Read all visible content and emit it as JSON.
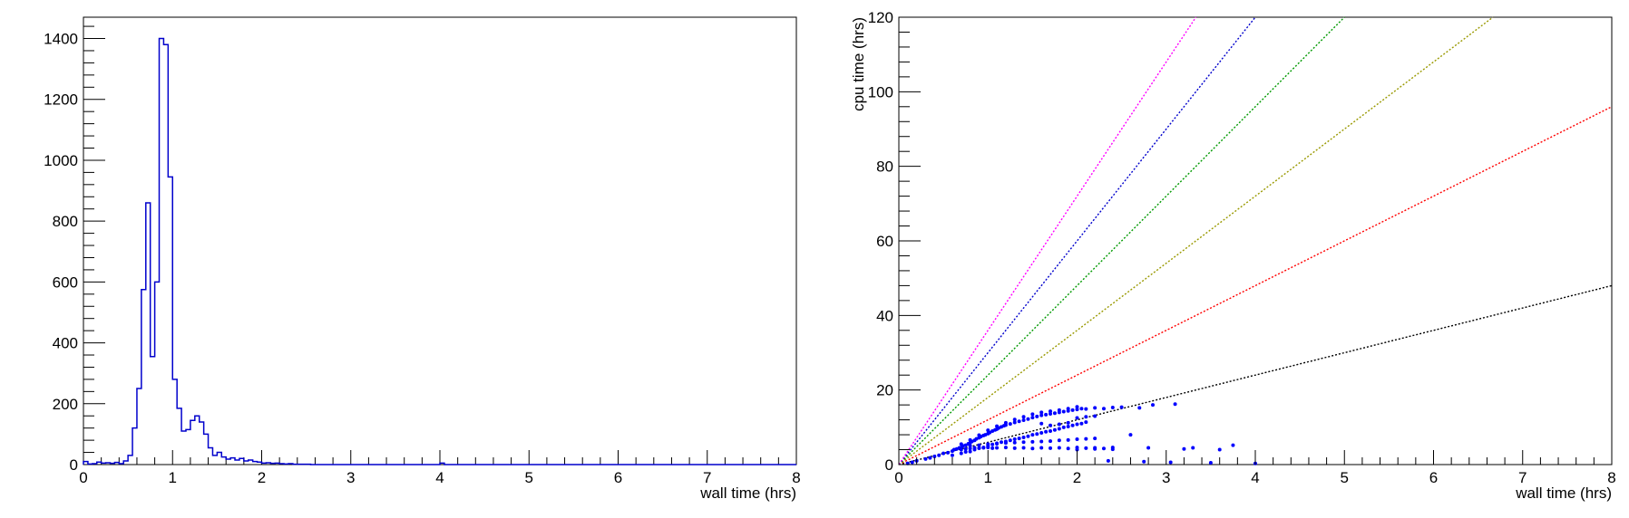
{
  "chart_data": [
    {
      "id": "left",
      "type": "histogram",
      "title": "",
      "xlabel": "wall time (hrs)",
      "ylabel": "",
      "xlim": [
        0,
        8
      ],
      "ylim": [
        0,
        1470
      ],
      "x_ticks": [
        0,
        1,
        2,
        3,
        4,
        5,
        6,
        7,
        8
      ],
      "y_ticks": [
        0,
        200,
        400,
        600,
        800,
        1000,
        1200,
        1400
      ],
      "grid": false,
      "color": "#0000cc",
      "bin_width": 0.05,
      "bins": [
        {
          "x": 0.0,
          "y": 10
        },
        {
          "x": 0.05,
          "y": 2
        },
        {
          "x": 0.1,
          "y": 3
        },
        {
          "x": 0.15,
          "y": 8
        },
        {
          "x": 0.2,
          "y": 5
        },
        {
          "x": 0.25,
          "y": 6
        },
        {
          "x": 0.3,
          "y": 4
        },
        {
          "x": 0.35,
          "y": 7
        },
        {
          "x": 0.4,
          "y": 3
        },
        {
          "x": 0.45,
          "y": 12
        },
        {
          "x": 0.5,
          "y": 30
        },
        {
          "x": 0.55,
          "y": 120
        },
        {
          "x": 0.6,
          "y": 250
        },
        {
          "x": 0.65,
          "y": 575
        },
        {
          "x": 0.7,
          "y": 860
        },
        {
          "x": 0.75,
          "y": 355
        },
        {
          "x": 0.8,
          "y": 600
        },
        {
          "x": 0.85,
          "y": 1400
        },
        {
          "x": 0.9,
          "y": 1380
        },
        {
          "x": 0.95,
          "y": 945
        },
        {
          "x": 1.0,
          "y": 280
        },
        {
          "x": 1.05,
          "y": 185
        },
        {
          "x": 1.1,
          "y": 110
        },
        {
          "x": 1.15,
          "y": 115
        },
        {
          "x": 1.2,
          "y": 145
        },
        {
          "x": 1.25,
          "y": 160
        },
        {
          "x": 1.3,
          "y": 140
        },
        {
          "x": 1.35,
          "y": 100
        },
        {
          "x": 1.4,
          "y": 55
        },
        {
          "x": 1.45,
          "y": 30
        },
        {
          "x": 1.5,
          "y": 40
        },
        {
          "x": 1.55,
          "y": 25
        },
        {
          "x": 1.6,
          "y": 18
        },
        {
          "x": 1.65,
          "y": 22
        },
        {
          "x": 1.7,
          "y": 15
        },
        {
          "x": 1.75,
          "y": 20
        },
        {
          "x": 1.8,
          "y": 12
        },
        {
          "x": 1.85,
          "y": 15
        },
        {
          "x": 1.9,
          "y": 10
        },
        {
          "x": 1.95,
          "y": 8
        },
        {
          "x": 2.0,
          "y": 5
        },
        {
          "x": 2.05,
          "y": 6
        },
        {
          "x": 2.1,
          "y": 4
        },
        {
          "x": 2.15,
          "y": 5
        },
        {
          "x": 2.2,
          "y": 3
        },
        {
          "x": 2.25,
          "y": 2
        },
        {
          "x": 2.3,
          "y": 3
        },
        {
          "x": 2.35,
          "y": 1
        },
        {
          "x": 2.4,
          "y": 1
        },
        {
          "x": 2.45,
          "y": 1
        },
        {
          "x": 2.5,
          "y": 1
        },
        {
          "x": 4.0,
          "y": 5
        }
      ]
    },
    {
      "id": "right",
      "type": "scatter",
      "title": "",
      "xlabel": "wall time (hrs)",
      "ylabel": "cpu time (hrs)",
      "xlim": [
        0,
        8
      ],
      "ylim": [
        0,
        120
      ],
      "x_ticks": [
        0,
        1,
        2,
        3,
        4,
        5,
        6,
        7,
        8
      ],
      "y_ticks": [
        0,
        20,
        40,
        60,
        80,
        100,
        120
      ],
      "grid": false,
      "reference_lines": [
        {
          "slope": 6,
          "color": "#000000"
        },
        {
          "slope": 12,
          "color": "#ff0000"
        },
        {
          "slope": 18,
          "color": "#999900"
        },
        {
          "slope": 24,
          "color": "#009900"
        },
        {
          "slope": 30,
          "color": "#0000cc"
        },
        {
          "slope": 36,
          "color": "#ff00ff"
        }
      ],
      "series": [
        {
          "color": "#0000ff",
          "points": [
            [
              0.1,
              0.3
            ],
            [
              0.15,
              0.6
            ],
            [
              0.2,
              1.0
            ],
            [
              0.3,
              1.5
            ],
            [
              0.35,
              1.8
            ],
            [
              0.4,
              2.2
            ],
            [
              0.45,
              2.5
            ],
            [
              0.5,
              3.0
            ],
            [
              0.55,
              3.2
            ],
            [
              0.6,
              3.6
            ],
            [
              0.62,
              4.0
            ],
            [
              0.65,
              4.2
            ],
            [
              0.68,
              4.5
            ],
            [
              0.7,
              4.6
            ],
            [
              0.72,
              5.0
            ],
            [
              0.75,
              5.2
            ],
            [
              0.78,
              5.6
            ],
            [
              0.8,
              5.8
            ],
            [
              0.82,
              6.2
            ],
            [
              0.85,
              6.5
            ],
            [
              0.87,
              6.9
            ],
            [
              0.9,
              7.2
            ],
            [
              0.92,
              7.5
            ],
            [
              0.95,
              7.8
            ],
            [
              0.97,
              8.0
            ],
            [
              1.0,
              8.3
            ],
            [
              1.02,
              8.6
            ],
            [
              1.05,
              9.0
            ],
            [
              1.08,
              9.3
            ],
            [
              1.1,
              9.5
            ],
            [
              1.12,
              9.8
            ],
            [
              1.15,
              10.1
            ],
            [
              1.18,
              10.4
            ],
            [
              1.2,
              10.6
            ],
            [
              1.25,
              10.9
            ],
            [
              1.3,
              11.3
            ],
            [
              1.35,
              11.6
            ],
            [
              1.4,
              11.9
            ],
            [
              1.45,
              12.2
            ],
            [
              1.5,
              12.6
            ],
            [
              1.55,
              12.9
            ],
            [
              1.6,
              13.2
            ],
            [
              1.65,
              13.4
            ],
            [
              1.7,
              13.6
            ],
            [
              1.75,
              13.8
            ],
            [
              1.8,
              14.0
            ],
            [
              1.85,
              14.2
            ],
            [
              1.9,
              14.4
            ],
            [
              1.95,
              14.6
            ],
            [
              2.0,
              14.8
            ],
            [
              2.05,
              15.0
            ],
            [
              2.1,
              14.9
            ],
            [
              2.2,
              15.2
            ],
            [
              2.3,
              15.0
            ],
            [
              2.4,
              15.3
            ],
            [
              2.5,
              15.4
            ],
            [
              2.7,
              15.2
            ],
            [
              2.85,
              16.0
            ],
            [
              3.1,
              16.2
            ],
            [
              0.6,
              2.5
            ],
            [
              0.7,
              3.0
            ],
            [
              0.75,
              3.4
            ],
            [
              0.8,
              3.5
            ],
            [
              0.85,
              4.0
            ],
            [
              0.9,
              4.4
            ],
            [
              0.95,
              4.6
            ],
            [
              1.0,
              5.0
            ],
            [
              1.05,
              5.4
            ],
            [
              1.1,
              5.7
            ],
            [
              1.15,
              6.0
            ],
            [
              1.2,
              6.2
            ],
            [
              1.25,
              6.5
            ],
            [
              1.3,
              6.8
            ],
            [
              1.35,
              7.0
            ],
            [
              1.4,
              7.3
            ],
            [
              1.45,
              7.6
            ],
            [
              1.5,
              8.0
            ],
            [
              1.55,
              8.2
            ],
            [
              1.6,
              8.5
            ],
            [
              1.65,
              8.8
            ],
            [
              1.7,
              9.0
            ],
            [
              1.75,
              9.3
            ],
            [
              1.8,
              9.6
            ],
            [
              1.85,
              10.0
            ],
            [
              1.9,
              10.2
            ],
            [
              1.95,
              10.5
            ],
            [
              2.0,
              10.8
            ],
            [
              2.05,
              11.0
            ],
            [
              2.1,
              11.4
            ],
            [
              0.7,
              5.5
            ],
            [
              0.8,
              6.6
            ],
            [
              0.9,
              7.9
            ],
            [
              1.0,
              9.2
            ],
            [
              1.1,
              10.3
            ],
            [
              1.2,
              11.2
            ],
            [
              1.3,
              12.1
            ],
            [
              1.4,
              12.8
            ],
            [
              1.5,
              13.5
            ],
            [
              1.6,
              14.0
            ],
            [
              1.7,
              14.3
            ],
            [
              1.8,
              14.6
            ],
            [
              1.9,
              15.0
            ],
            [
              2.0,
              15.5
            ],
            [
              0.7,
              4.0
            ],
            [
              0.75,
              4.2
            ],
            [
              0.8,
              4.3
            ],
            [
              0.85,
              4.5
            ],
            [
              0.9,
              4.4
            ],
            [
              0.95,
              4.5
            ],
            [
              1.0,
              4.6
            ],
            [
              1.05,
              4.4
            ],
            [
              1.1,
              4.5
            ],
            [
              1.2,
              4.6
            ],
            [
              1.3,
              4.4
            ],
            [
              1.4,
              4.5
            ],
            [
              1.5,
              4.3
            ],
            [
              1.6,
              4.5
            ],
            [
              1.7,
              4.4
            ],
            [
              1.8,
              4.5
            ],
            [
              1.9,
              4.3
            ],
            [
              2.0,
              4.6
            ],
            [
              2.1,
              4.4
            ],
            [
              2.2,
              4.5
            ],
            [
              2.3,
              4.3
            ],
            [
              2.4,
              4.6
            ],
            [
              0.8,
              5.0
            ],
            [
              0.9,
              5.2
            ],
            [
              1.0,
              5.5
            ],
            [
              1.1,
              5.6
            ],
            [
              1.2,
              5.8
            ],
            [
              1.3,
              5.9
            ],
            [
              1.4,
              6.0
            ],
            [
              1.5,
              6.1
            ],
            [
              1.6,
              6.2
            ],
            [
              1.7,
              6.3
            ],
            [
              1.8,
              6.5
            ],
            [
              1.9,
              6.6
            ],
            [
              2.0,
              6.8
            ],
            [
              2.1,
              6.9
            ],
            [
              2.2,
              7.0
            ],
            [
              1.6,
              11.0
            ],
            [
              1.7,
              10.5
            ],
            [
              1.8,
              10.8
            ],
            [
              1.9,
              11.2
            ],
            [
              2.0,
              12.5
            ],
            [
              2.1,
              12.8
            ],
            [
              2.2,
              13.0
            ],
            [
              2.0,
              4.0
            ],
            [
              2.2,
              4.2
            ],
            [
              2.4,
              4.1
            ],
            [
              2.6,
              8.0
            ],
            [
              2.8,
              4.5
            ],
            [
              3.2,
              4.2
            ],
            [
              3.3,
              4.5
            ],
            [
              3.6,
              4.0
            ],
            [
              3.75,
              5.2
            ],
            [
              2.35,
              1.0
            ],
            [
              2.75,
              0.8
            ],
            [
              3.05,
              0.6
            ],
            [
              3.5,
              0.5
            ],
            [
              4.0,
              0.3
            ]
          ]
        }
      ]
    }
  ]
}
